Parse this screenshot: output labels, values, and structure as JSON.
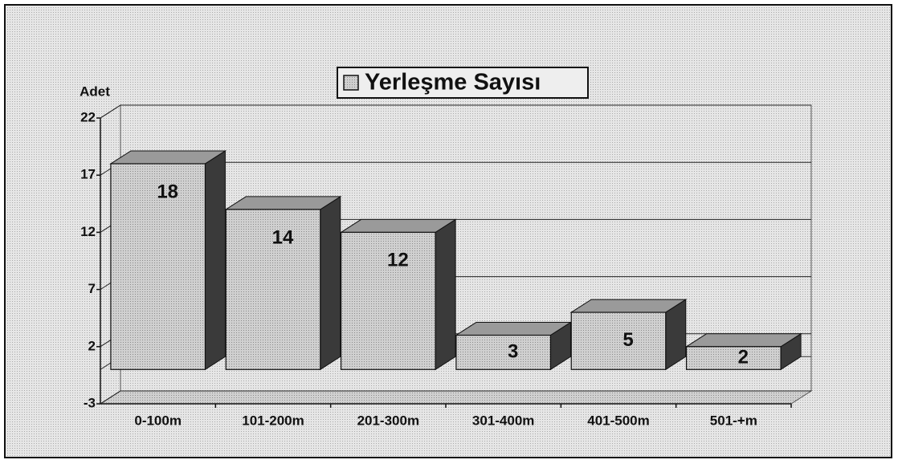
{
  "chart_data": {
    "type": "bar",
    "y_label": "Adet",
    "categories": [
      "0-100m",
      "101-200m",
      "201-300m",
      "301-400m",
      "401-500m",
      "501-+m"
    ],
    "series": [
      {
        "name": "Yerleşme Sayısı",
        "color": "#c8c8c8",
        "values": [
          18,
          14,
          12,
          3,
          5,
          2
        ]
      }
    ],
    "ylim": [
      -3,
      22
    ],
    "yticks": [
      -3,
      2,
      7,
      12,
      17,
      22
    ],
    "grid": true,
    "legend": "top"
  }
}
